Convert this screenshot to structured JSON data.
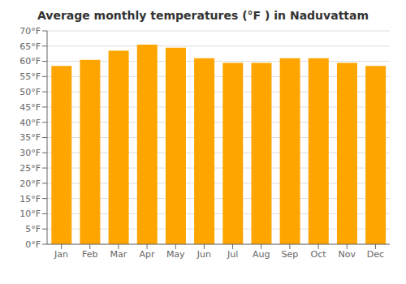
{
  "chart_data": {
    "type": "bar",
    "title": "Average monthly temperatures (°F ) in Naduvattam",
    "categories": [
      "Jan",
      "Feb",
      "Mar",
      "Apr",
      "May",
      "Jun",
      "Jul",
      "Aug",
      "Sep",
      "Oct",
      "Nov",
      "Dec"
    ],
    "values": [
      58.5,
      60.5,
      63.5,
      65.5,
      64.5,
      61.0,
      59.5,
      59.5,
      61.0,
      61.0,
      59.5,
      58.5
    ],
    "color": "#FFA500",
    "ylim": [
      0,
      70
    ],
    "yticks": [
      {
        "value": 0,
        "label": "0°F"
      },
      {
        "value": 5,
        "label": "5°F"
      },
      {
        "value": 10,
        "label": "10°F"
      },
      {
        "value": 15,
        "label": "15°F"
      },
      {
        "value": 20,
        "label": "20°F"
      },
      {
        "value": 25,
        "label": "25°F"
      },
      {
        "value": 30,
        "label": "30°F"
      },
      {
        "value": 35,
        "label": "35°F"
      },
      {
        "value": 40,
        "label": "40°F"
      },
      {
        "value": 45,
        "label": "45°F"
      },
      {
        "value": 50,
        "label": "50°F"
      },
      {
        "value": 55,
        "label": "55°F"
      },
      {
        "value": 60,
        "label": "60°F"
      },
      {
        "value": 65,
        "label": "65°F"
      },
      {
        "value": 70,
        "label": "70°F"
      }
    ],
    "grid": true
  }
}
